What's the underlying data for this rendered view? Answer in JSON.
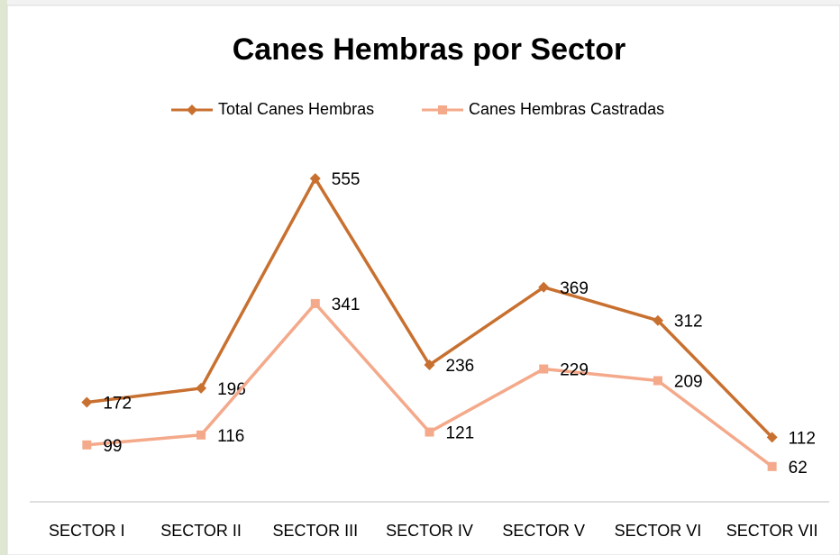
{
  "chart_data": {
    "type": "line",
    "title": "Canes Hembras por Sector",
    "categories": [
      "SECTOR I",
      "SECTOR II",
      "SECTOR III",
      "SECTOR IV",
      "SECTOR V",
      "SECTOR VI",
      "SECTOR VII"
    ],
    "series": [
      {
        "name": "Total Canes Hembras",
        "color": "#c8702f",
        "marker": "diamond",
        "values": [
          172,
          196,
          555,
          236,
          369,
          312,
          112
        ]
      },
      {
        "name": "Canes Hembras Castradas",
        "color": "#f4a98a",
        "marker": "square",
        "values": [
          99,
          116,
          341,
          121,
          229,
          209,
          62
        ]
      }
    ],
    "ylim": [
      0,
      600
    ],
    "legend": "top",
    "data_labels": true
  }
}
